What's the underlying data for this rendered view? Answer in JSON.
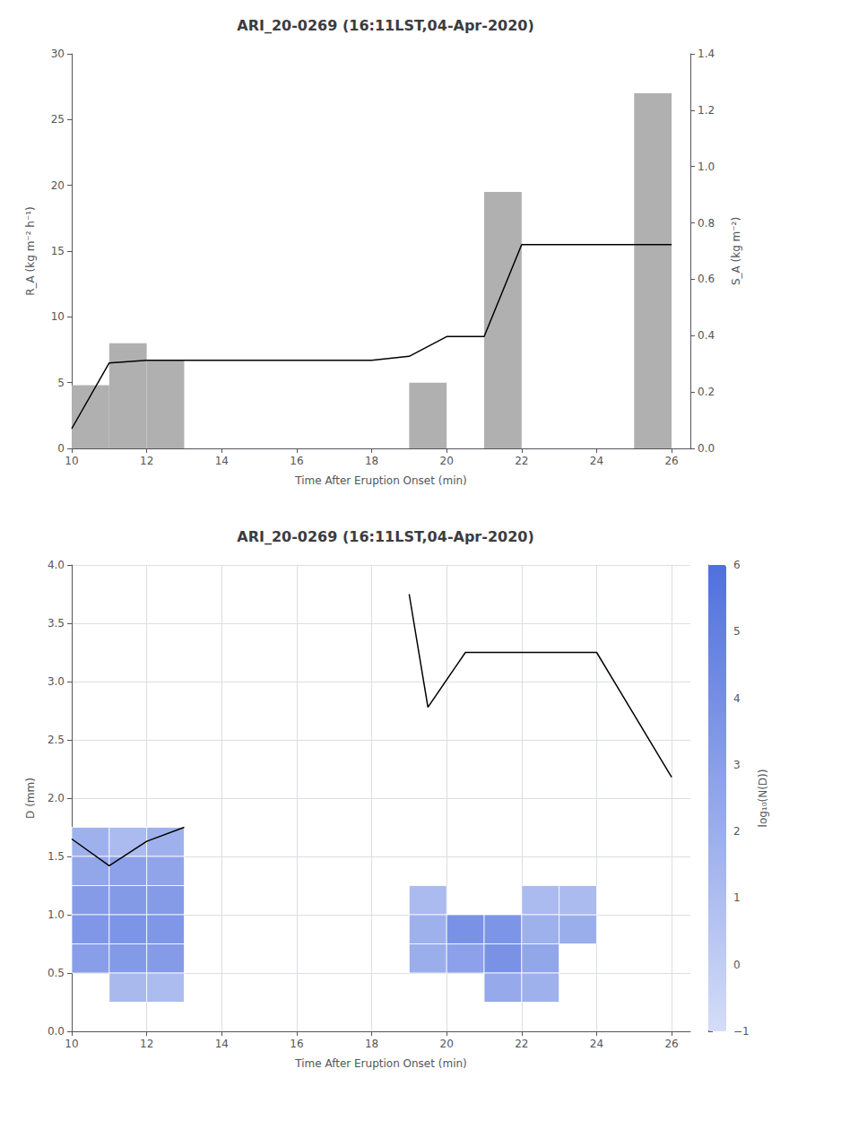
{
  "chart_data": [
    {
      "type": "bar",
      "title": "ARI_20-0269 (16:11LST,04-Apr-2020)",
      "xlabel": "Time After Eruption Onset (min)",
      "ylabel": "R_A (kg m⁻² h⁻¹)",
      "y2label": "S_A (kg m⁻²)",
      "xlim": [
        10,
        26.5
      ],
      "xticks": [
        10,
        12,
        14,
        16,
        18,
        20,
        22,
        24,
        26
      ],
      "ylim": [
        0,
        30
      ],
      "yticks": [
        0,
        5,
        10,
        15,
        20,
        25,
        30
      ],
      "y2lim": [
        0,
        1.4
      ],
      "y2ticks": [
        {
          "value": 0,
          "label": "0.0"
        },
        0.2,
        0.4,
        0.6,
        0.8,
        {
          "value": 1.0,
          "label": "1.0"
        },
        1.2,
        1.4
      ],
      "grid": false,
      "series": [
        {
          "type": "bar",
          "color": "#b0b0b0",
          "x": [
            10,
            11,
            12,
            19,
            21,
            25
          ],
          "values": [
            4.8,
            8.0,
            6.7,
            5.0,
            19.5,
            27.0
          ],
          "width": 1.0
        },
        {
          "type": "line",
          "axis": "y2",
          "color": "#000000",
          "x": [
            10,
            11,
            12,
            13,
            14,
            16,
            18,
            19,
            20,
            21,
            22,
            24,
            26
          ],
          "values": [
            0.07,
            0.303333333333333,
            0.312666666666667,
            0.312666666666667,
            0.312666666666667,
            0.312666666666667,
            0.312666666666667,
            0.326666666666667,
            0.396666666666667,
            0.396666666666667,
            0.723333333333333,
            0.723333333333333,
            0.723333333333333
          ]
        }
      ]
    },
    {
      "type": "heatmap",
      "title": "ARI_20-0269 (16:11LST,04-Apr-2020)",
      "xlabel": "Time After Eruption Onset (min)",
      "ylabel": "D (mm)",
      "xlim": [
        10,
        26.5
      ],
      "xticks": [
        10,
        12,
        14,
        16,
        18,
        20,
        22,
        24,
        26
      ],
      "ylim": [
        0,
        4.0
      ],
      "yticks": [
        {
          "value": 0,
          "label": "0.0"
        },
        0.5,
        {
          "value": 1,
          "label": "1.0"
        },
        1.5,
        {
          "value": 2,
          "label": "2.0"
        },
        2.5,
        {
          "value": 3,
          "label": "3.0"
        },
        3.5,
        {
          "value": 4,
          "label": "4.0"
        }
      ],
      "grid": true,
      "clim": [
        -1,
        6
      ],
      "cticks": [
        {
          "value": -1,
          "label": "−1"
        },
        0,
        1,
        2,
        3,
        4,
        5,
        6
      ],
      "clabel": "log₁₀(N(D))",
      "cell_width": 1.0,
      "cells": [
        {
          "t": 10,
          "d_lo": 1.5,
          "d_hi": 1.75,
          "val": 1.8
        },
        {
          "t": 10,
          "d_lo": 1.25,
          "d_hi": 1.5,
          "val": 2.5
        },
        {
          "t": 10,
          "d_lo": 1.0,
          "d_hi": 1.25,
          "val": 3.2
        },
        {
          "t": 10,
          "d_lo": 0.75,
          "d_hi": 1.0,
          "val": 3.5
        },
        {
          "t": 10,
          "d_lo": 0.5,
          "d_hi": 0.75,
          "val": 3.0
        },
        {
          "t": 11,
          "d_lo": 1.5,
          "d_hi": 1.75,
          "val": 1.2
        },
        {
          "t": 11,
          "d_lo": 1.25,
          "d_hi": 1.5,
          "val": 2.8
        },
        {
          "t": 11,
          "d_lo": 1.0,
          "d_hi": 1.25,
          "val": 3.3
        },
        {
          "t": 11,
          "d_lo": 0.75,
          "d_hi": 1.0,
          "val": 3.6
        },
        {
          "t": 11,
          "d_lo": 0.5,
          "d_hi": 0.75,
          "val": 3.3
        },
        {
          "t": 11,
          "d_lo": 0.25,
          "d_hi": 0.5,
          "val": 1.3
        },
        {
          "t": 12,
          "d_lo": 1.5,
          "d_hi": 1.75,
          "val": 1.8
        },
        {
          "t": 12,
          "d_lo": 1.25,
          "d_hi": 1.5,
          "val": 2.6
        },
        {
          "t": 12,
          "d_lo": 1.0,
          "d_hi": 1.25,
          "val": 3.2
        },
        {
          "t": 12,
          "d_lo": 0.75,
          "d_hi": 1.0,
          "val": 3.5
        },
        {
          "t": 12,
          "d_lo": 0.5,
          "d_hi": 0.75,
          "val": 3.2
        },
        {
          "t": 12,
          "d_lo": 0.25,
          "d_hi": 0.5,
          "val": 1.1
        },
        {
          "t": 19,
          "d_lo": 1.0,
          "d_hi": 1.25,
          "val": 1.2
        },
        {
          "t": 19,
          "d_lo": 0.75,
          "d_hi": 1.0,
          "val": 1.8
        },
        {
          "t": 19,
          "d_lo": 0.5,
          "d_hi": 0.75,
          "val": 2.0
        },
        {
          "t": 20,
          "d_lo": 0.75,
          "d_hi": 1.0,
          "val": 3.8
        },
        {
          "t": 20,
          "d_lo": 0.5,
          "d_hi": 0.75,
          "val": 2.8
        },
        {
          "t": 21,
          "d_lo": 0.75,
          "d_hi": 1.0,
          "val": 3.6
        },
        {
          "t": 21,
          "d_lo": 0.5,
          "d_hi": 0.75,
          "val": 3.8
        },
        {
          "t": 21,
          "d_lo": 0.25,
          "d_hi": 0.5,
          "val": 2.3
        },
        {
          "t": 22,
          "d_lo": 1.0,
          "d_hi": 1.25,
          "val": 1.2
        },
        {
          "t": 22,
          "d_lo": 0.75,
          "d_hi": 1.0,
          "val": 1.8
        },
        {
          "t": 22,
          "d_lo": 0.5,
          "d_hi": 0.75,
          "val": 2.5
        },
        {
          "t": 22,
          "d_lo": 0.25,
          "d_hi": 0.5,
          "val": 1.8
        },
        {
          "t": 23,
          "d_lo": 0.75,
          "d_hi": 1.0,
          "val": 2.0
        },
        {
          "t": 23,
          "d_lo": 1.0,
          "d_hi": 1.25,
          "val": 1.2
        }
      ],
      "series": [
        {
          "type": "line",
          "color": "#000000",
          "x": [
            10.0,
            11.0,
            12.0,
            13.0
          ],
          "values": [
            1.65,
            1.42,
            1.63,
            1.75
          ]
        },
        {
          "type": "line",
          "color": "#000000",
          "x": [
            19.0,
            19.5,
            20.5,
            21.0,
            23.5,
            24.0,
            26.0
          ],
          "values": [
            3.75,
            2.78,
            3.25,
            3.25,
            3.25,
            3.25,
            2.18
          ]
        }
      ]
    }
  ]
}
